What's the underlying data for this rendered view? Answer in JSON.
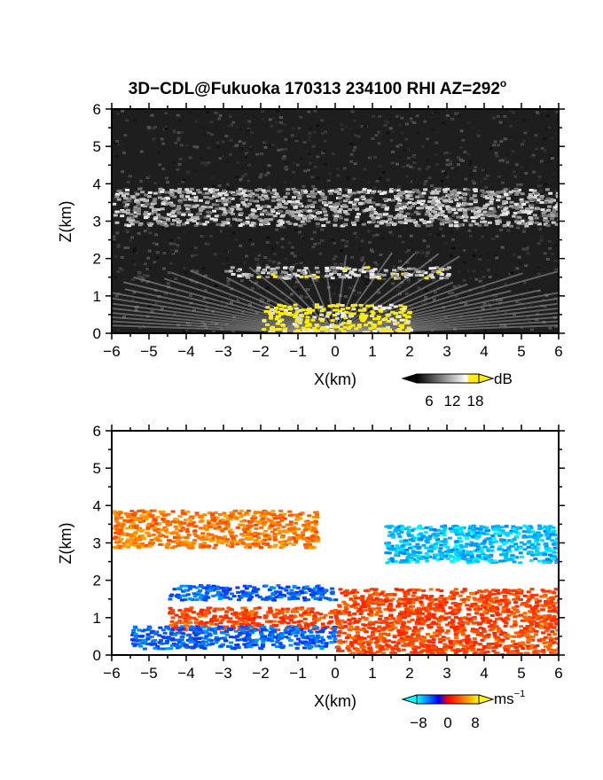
{
  "figure": {
    "title_main": "3D−CDL@Fukuoka 170313 234100 RHI AZ=292",
    "title_deg": "o"
  },
  "chart_data": [
    {
      "type": "heatmap",
      "panel": "backscatter",
      "xlabel": "X(km)",
      "ylabel": "Z(km)",
      "xlim": [
        -6,
        6
      ],
      "ylim": [
        0,
        6
      ],
      "x_ticks": [
        -6,
        -5,
        -4,
        -3,
        -2,
        -1,
        0,
        1,
        2,
        3,
        4,
        5,
        6
      ],
      "y_ticks": [
        0,
        1,
        2,
        3,
        4,
        5,
        6
      ],
      "colorbar": {
        "unit": "dB",
        "ticks": [
          6,
          12,
          18
        ],
        "range": [
          0,
          20
        ],
        "colors": [
          "#000000",
          "#ffffff",
          "#ffee00"
        ]
      },
      "features": [
        {
          "layer": "cloud/aerosol layer",
          "z_km": [
            2.9,
            3.9
          ],
          "x_km": [
            -6,
            6
          ],
          "level_db": 10
        },
        {
          "layer": "boundary layer top",
          "z_km": [
            1.5,
            1.8
          ],
          "x_km": [
            -3,
            3
          ],
          "level_db": 12
        },
        {
          "layer": "near-surface",
          "z_km": [
            0,
            0.8
          ],
          "x_km": [
            -2,
            2
          ],
          "level_db": 18
        }
      ]
    },
    {
      "type": "heatmap",
      "panel": "doppler velocity",
      "xlabel": "X(km)",
      "ylabel": "Z(km)",
      "xlim": [
        -6,
        6
      ],
      "ylim": [
        0,
        6
      ],
      "x_ticks": [
        -6,
        -5,
        -4,
        -3,
        -2,
        -1,
        0,
        1,
        2,
        3,
        4,
        5,
        6
      ],
      "y_ticks": [
        0,
        1,
        2,
        3,
        4,
        5,
        6
      ],
      "colorbar": {
        "unit": "ms",
        "unit_exp": "−1",
        "ticks": [
          "−8",
          "0",
          "8"
        ],
        "tick_values": [
          -8,
          0,
          8
        ],
        "range": [
          -12,
          12
        ],
        "colors": [
          "#00ffff",
          "#0000ff",
          "#ff0000",
          "#ffff00"
        ]
      },
      "features": [
        {
          "layer": "upper layer west",
          "z_km": [
            2.9,
            3.9
          ],
          "x_km": [
            -6,
            -0.5
          ],
          "velocity_ms": 6
        },
        {
          "layer": "upper layer east",
          "z_km": [
            2.5,
            3.5
          ],
          "x_km": [
            1.3,
            6
          ],
          "velocity_ms": -10
        },
        {
          "layer": "lower layer west (top)",
          "z_km": [
            1.5,
            1.9
          ],
          "x_km": [
            -4.5,
            0
          ],
          "velocity_ms": -7
        },
        {
          "layer": "lower layer west (middle)",
          "z_km": [
            0.7,
            1.3
          ],
          "x_km": [
            -4.5,
            0
          ],
          "velocity_ms": 4
        },
        {
          "layer": "lower layer west (bottom)",
          "z_km": [
            0.2,
            0.8
          ],
          "x_km": [
            -5.5,
            0
          ],
          "velocity_ms": -7
        },
        {
          "layer": "lower layer east",
          "z_km": [
            0,
            1.8
          ],
          "x_km": [
            0,
            6
          ],
          "velocity_ms": 4
        }
      ]
    }
  ]
}
